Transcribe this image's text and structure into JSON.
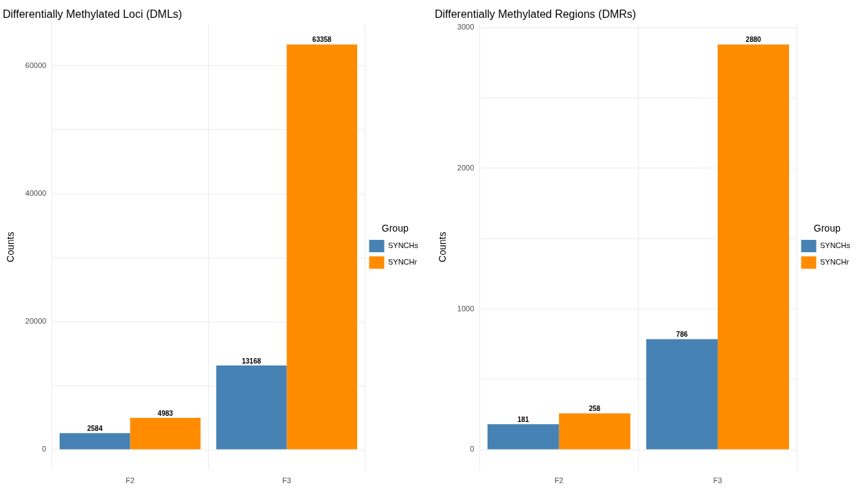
{
  "chart_data": [
    {
      "type": "bar",
      "title": "Differentially Methylated Loci (DMLs)",
      "ylabel": "Counts",
      "legend_title": "Group",
      "legend": "right",
      "grid": true,
      "data_labels": true,
      "categories": [
        "F2",
        "F3"
      ],
      "series": [
        {
          "name": "SYNCHs",
          "color": "#4682b4",
          "values": [
            2584,
            13168
          ]
        },
        {
          "name": "SYNCHr",
          "color": "#ff8c00",
          "values": [
            4983,
            63358
          ]
        }
      ],
      "ylim": [
        -3168,
        66526
      ],
      "yticks": [
        0,
        {
          "value": 10000,
          "label": null
        },
        20000,
        {
          "value": 30000,
          "label": null
        },
        40000,
        {
          "value": 50000,
          "label": null
        },
        60000
      ]
    },
    {
      "type": "bar",
      "title": "Differentially Methylated Regions (DMRs)",
      "ylabel": "Counts",
      "legend_title": "Group",
      "legend": "right",
      "grid": true,
      "data_labels": true,
      "categories": [
        "F2",
        "F3"
      ],
      "series": [
        {
          "name": "SYNCHs",
          "color": "#4682b4",
          "values": [
            181,
            786
          ]
        },
        {
          "name": "SYNCHr",
          "color": "#ff8c00",
          "values": [
            258,
            2880
          ]
        }
      ],
      "ylim": [
        -144,
        3024
      ],
      "yticks": [
        0,
        {
          "value": 500,
          "label": null
        },
        1000,
        {
          "value": 1500,
          "label": null
        },
        2000,
        {
          "value": 2500,
          "label": null
        },
        3000
      ]
    }
  ]
}
